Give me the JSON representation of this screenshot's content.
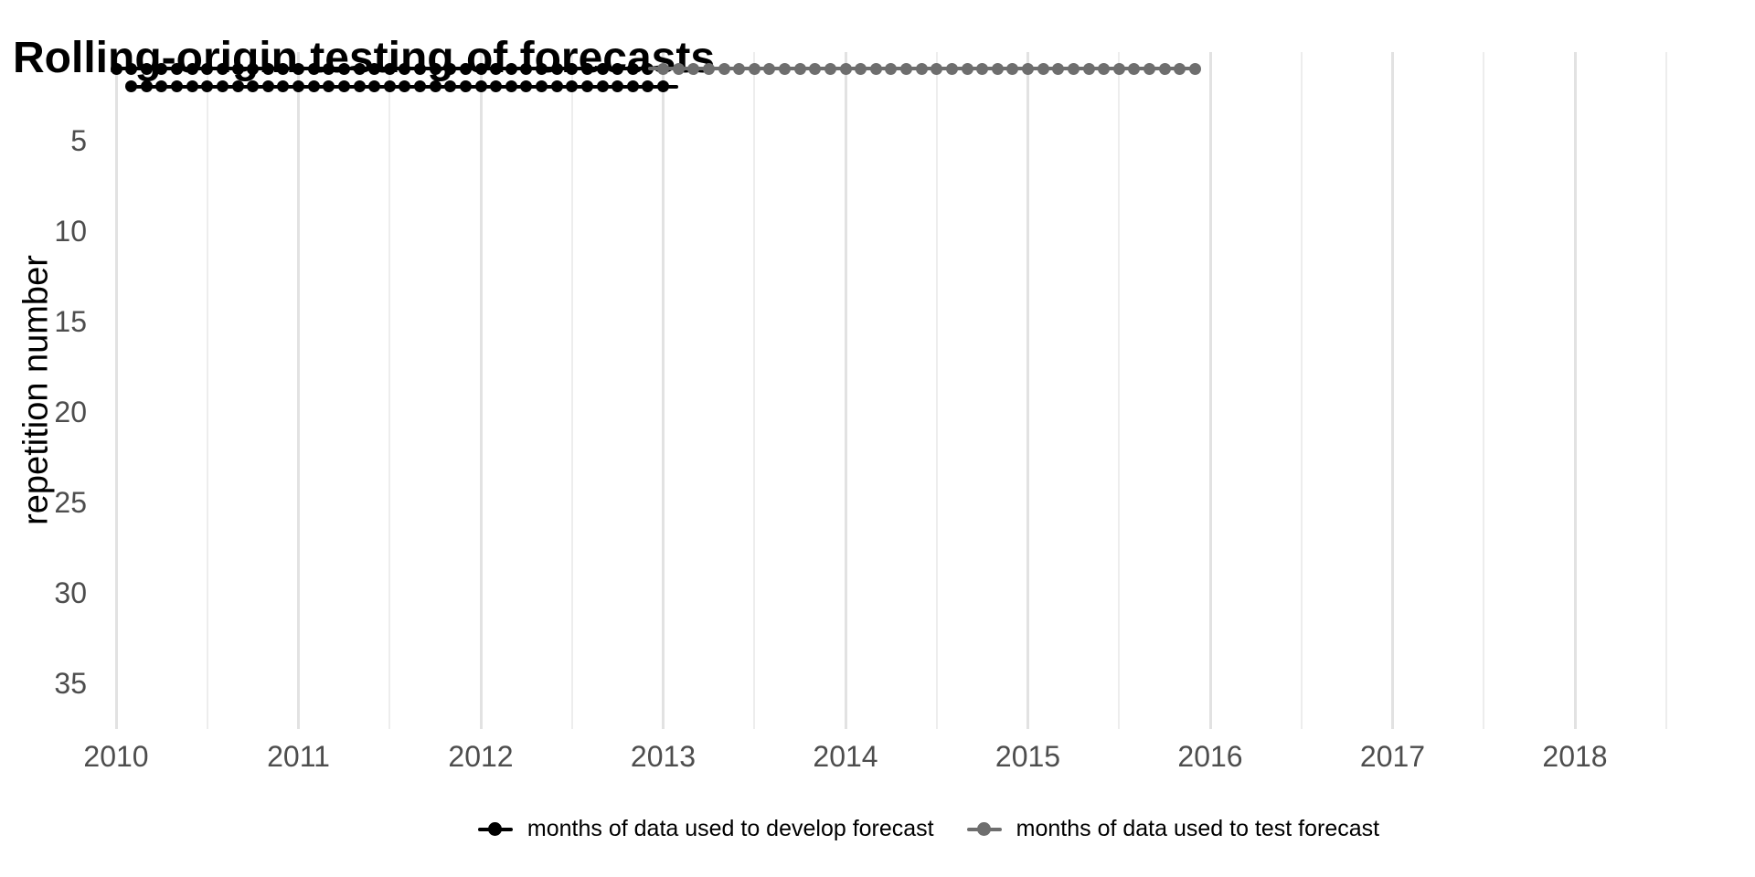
{
  "page": {
    "title": "Rolling-origin testing of forecasts"
  },
  "colors": {
    "develop": "#000000",
    "test": "#6e6e6e",
    "grid_major": "#e2e2e2",
    "grid_minor": "#ededed",
    "tick_label": "#4d4d4d",
    "background": "#ffffff"
  },
  "y_axis": {
    "label": "repetition number",
    "ticks": [
      "5",
      "10",
      "15",
      "20",
      "25",
      "30",
      "35"
    ]
  },
  "x_axis": {
    "ticks": [
      "2010",
      "2011",
      "2012",
      "2013",
      "2014",
      "2015",
      "2016",
      "2017",
      "2018"
    ]
  },
  "legend": {
    "items": [
      {
        "label": "months of data used to develop forecast",
        "color": "#000000"
      },
      {
        "label": "months of data used to test forecast",
        "color": "#6e6e6e"
      }
    ]
  },
  "chart_data": {
    "type": "scatter",
    "title": "Rolling-origin testing of forecasts",
    "xlabel": "",
    "ylabel": "repetition number",
    "x_tick_labels": [
      2010,
      2011,
      2012,
      2013,
      2014,
      2015,
      2016,
      2017,
      2018
    ],
    "y_tick_labels": [
      5,
      10,
      15,
      20,
      25,
      30,
      35
    ],
    "y_axis_reversed": true,
    "y_range_shown": [
      1,
      37
    ],
    "x_unit": "months, one dot per month",
    "grid": "vertical major gridlines at each year, minor at half-years, no horizontal gridlines",
    "legend_position": "bottom-center",
    "series": [
      {
        "name": "months of data used to develop forecast",
        "color": "#000000",
        "line_extends_to_previous_month": false,
        "points": [
          {
            "repetition": 1,
            "first_month": "2010-01",
            "last_month": "2012-12",
            "n_months": 36
          },
          {
            "repetition": 2,
            "first_month": "2010-02",
            "last_month": "2013-01",
            "n_months": 36
          }
        ]
      },
      {
        "name": "months of data used to test forecast",
        "color": "#6e6e6e",
        "line_extends_to_previous_month": true,
        "points": [
          {
            "repetition": 1,
            "first_month": "2013-01",
            "last_month": "2015-12",
            "n_months": 36
          }
        ]
      }
    ],
    "partial_line": {
      "repetition": 2,
      "from_month": "2013-01",
      "to_month": "2013-02",
      "color": "#000000",
      "note": "short line stub after last develop dot of repetition 2, no dot at end"
    }
  }
}
